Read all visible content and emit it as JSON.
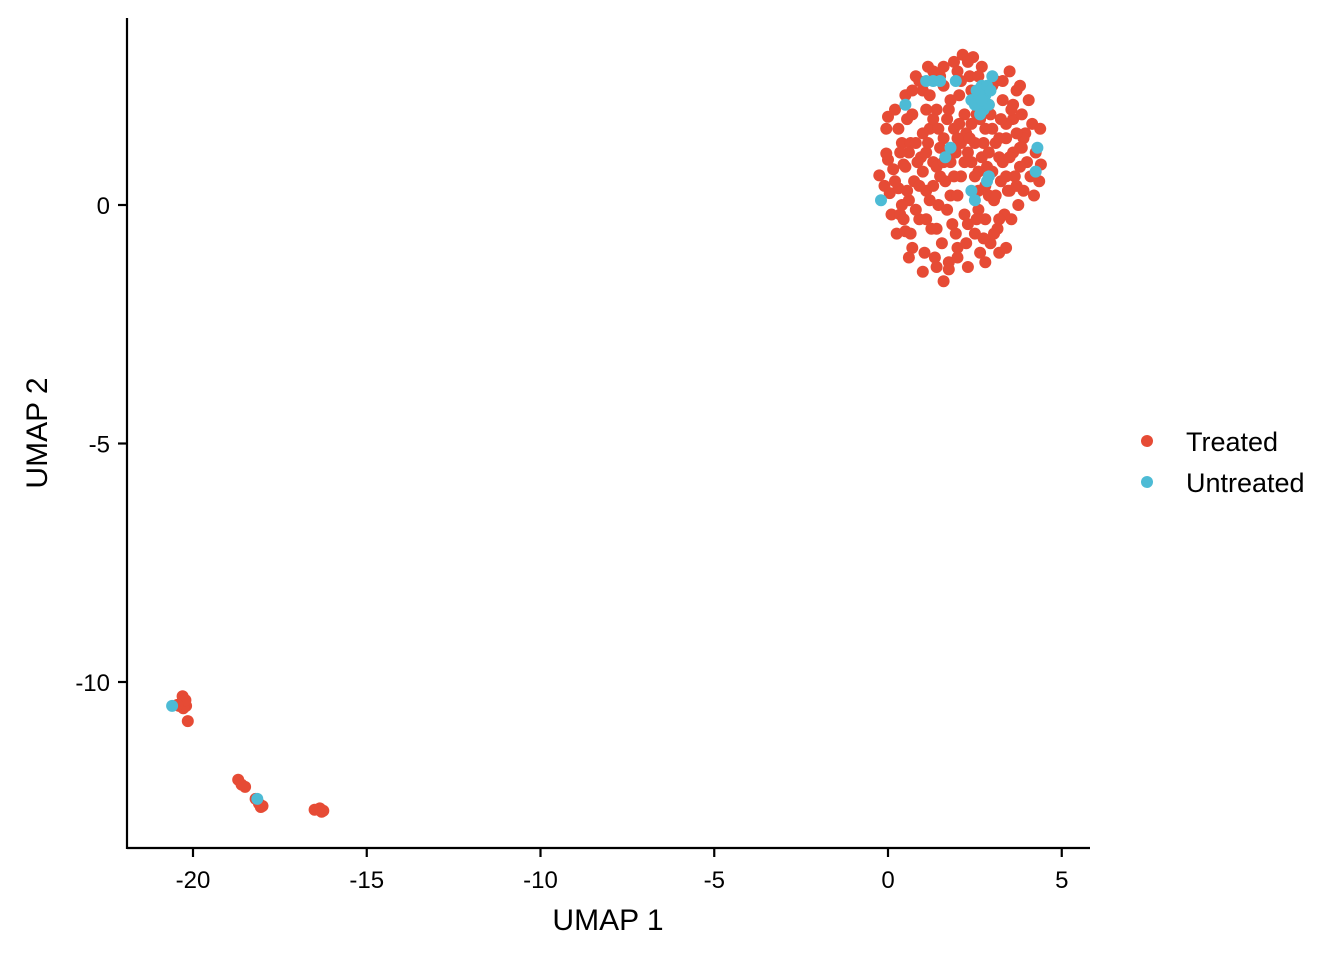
{
  "chart_data": {
    "type": "scatter",
    "title": "",
    "xlabel": "UMAP 1",
    "ylabel": "UMAP 2",
    "xlim": [
      -22,
      5.7
    ],
    "ylim": [
      -13.5,
      3.9
    ],
    "xticks": [
      -20,
      -15,
      -10,
      -5,
      0,
      5
    ],
    "yticks": [
      -10,
      -5,
      0
    ],
    "xtick_labels": [
      "-20",
      "-15",
      "-10",
      "-5",
      "0",
      "5"
    ],
    "ytick_labels": [
      "-10",
      "-5",
      "0"
    ],
    "grid": false,
    "legend_position": "right",
    "series": [
      {
        "name": "Treated",
        "color": "#E64B35",
        "points": [
          [
            -20.3,
            -10.3
          ],
          [
            -20.25,
            -10.42
          ],
          [
            -20.2,
            -10.5
          ],
          [
            -20.35,
            -10.45
          ],
          [
            -20.4,
            -10.5
          ],
          [
            -20.28,
            -10.55
          ],
          [
            -20.22,
            -10.38
          ],
          [
            -20.45,
            -10.48
          ],
          [
            -20.15,
            -10.82
          ],
          [
            -18.7,
            -12.05
          ],
          [
            -18.6,
            -12.15
          ],
          [
            -18.5,
            -12.2
          ],
          [
            -18.2,
            -12.45
          ],
          [
            -18.1,
            -12.55
          ],
          [
            -18.05,
            -12.62
          ],
          [
            -18.0,
            -12.6
          ],
          [
            -16.5,
            -12.68
          ],
          [
            -16.35,
            -12.65
          ],
          [
            -16.3,
            -12.72
          ],
          [
            -16.25,
            -12.7
          ],
          [
            -0.25,
            0.62
          ],
          [
            -0.05,
            1.6
          ],
          [
            0.0,
            0.95
          ],
          [
            -0.1,
            0.4
          ],
          [
            -0.05,
            1.08
          ],
          [
            0.05,
            0.25
          ],
          [
            0.1,
            -0.2
          ],
          [
            0.15,
            0.75
          ],
          [
            0.0,
            1.85
          ],
          [
            0.25,
            -0.6
          ],
          [
            0.3,
            0.35
          ],
          [
            0.4,
            1.3
          ],
          [
            0.2,
            2.0
          ],
          [
            0.35,
            -0.2
          ],
          [
            0.45,
            0.85
          ],
          [
            0.5,
            -0.55
          ],
          [
            0.55,
            1.8
          ],
          [
            0.6,
            0.1
          ],
          [
            0.7,
            -0.9
          ],
          [
            0.8,
            2.7
          ],
          [
            0.75,
            0.5
          ],
          [
            0.65,
            1.3
          ],
          [
            0.9,
            -0.3
          ],
          [
            0.95,
            1.0
          ],
          [
            1.0,
            2.4
          ],
          [
            1.05,
            -1.0
          ],
          [
            1.1,
            0.3
          ],
          [
            1.15,
            2.9
          ],
          [
            1.2,
            1.6
          ],
          [
            1.25,
            -0.5
          ],
          [
            1.3,
            0.9
          ],
          [
            1.35,
            -1.1
          ],
          [
            1.4,
            2.0
          ],
          [
            1.45,
            0.0
          ],
          [
            1.5,
            1.2
          ],
          [
            1.55,
            -0.8
          ],
          [
            1.6,
            2.5
          ],
          [
            1.65,
            0.5
          ],
          [
            1.7,
            1.8
          ],
          [
            1.75,
            -1.2
          ],
          [
            1.8,
            0.2
          ],
          [
            1.85,
            -0.4
          ],
          [
            1.9,
            3.0
          ],
          [
            1.95,
            1.1
          ],
          [
            2.0,
            -0.9
          ],
          [
            2.05,
            2.3
          ],
          [
            2.1,
            0.6
          ],
          [
            2.15,
            3.15
          ],
          [
            2.2,
            -0.2
          ],
          [
            2.25,
            1.5
          ],
          [
            2.3,
            -1.3
          ],
          [
            2.35,
            2.7
          ],
          [
            2.4,
            0.9
          ],
          [
            2.45,
            3.1
          ],
          [
            2.5,
            -0.6
          ],
          [
            2.55,
            1.9
          ],
          [
            2.6,
            0.3
          ],
          [
            2.65,
            -1.0
          ],
          [
            2.7,
            2.9
          ],
          [
            2.75,
            1.3
          ],
          [
            2.8,
            -0.3
          ],
          [
            2.85,
            0.8
          ],
          [
            2.9,
            2.1
          ],
          [
            2.95,
            -0.8
          ],
          [
            3.0,
            1.6
          ],
          [
            3.05,
            0.1
          ],
          [
            3.1,
            2.6
          ],
          [
            3.15,
            -0.5
          ],
          [
            3.2,
            1.0
          ],
          [
            3.25,
            0.5
          ],
          [
            3.3,
            2.2
          ],
          [
            3.35,
            -0.2
          ],
          [
            3.4,
            1.4
          ],
          [
            3.45,
            0.3
          ],
          [
            3.5,
            2.8
          ],
          [
            3.55,
            -0.3
          ],
          [
            3.6,
            1.8
          ],
          [
            3.65,
            0.6
          ],
          [
            3.7,
            2.4
          ],
          [
            3.75,
            0.0
          ],
          [
            3.8,
            1.2
          ],
          [
            3.85,
            1.9
          ],
          [
            3.9,
            0.3
          ],
          [
            3.95,
            1.5
          ],
          [
            4.0,
            0.9
          ],
          [
            4.05,
            2.2
          ],
          [
            4.1,
            0.6
          ],
          [
            4.15,
            1.7
          ],
          [
            4.2,
            0.2
          ],
          [
            4.25,
            1.1
          ],
          [
            4.38,
            1.6
          ],
          [
            4.4,
            0.85
          ],
          [
            4.35,
            0.5
          ],
          [
            1.6,
            -1.6
          ],
          [
            1.4,
            -1.3
          ],
          [
            2.0,
            -1.1
          ],
          [
            2.8,
            -1.2
          ],
          [
            3.2,
            -1.0
          ],
          [
            0.6,
            -1.1
          ],
          [
            1.0,
            -1.4
          ],
          [
            1.75,
            -1.35
          ],
          [
            3.4,
            -0.9
          ],
          [
            0.5,
            0.8
          ],
          [
            0.9,
            0.4
          ],
          [
            1.2,
            0.1
          ],
          [
            1.5,
            0.6
          ],
          [
            1.8,
            0.9
          ],
          [
            2.1,
            1.3
          ],
          [
            2.4,
            1.7
          ],
          [
            2.7,
            1.0
          ],
          [
            3.0,
            0.7
          ],
          [
            3.3,
            0.9
          ],
          [
            3.6,
            1.1
          ],
          [
            3.9,
            1.4
          ],
          [
            0.7,
            1.9
          ],
          [
            1.0,
            1.5
          ],
          [
            1.3,
            1.8
          ],
          [
            1.6,
            1.4
          ],
          [
            1.9,
            1.6
          ],
          [
            2.2,
            1.9
          ],
          [
            2.5,
            1.3
          ],
          [
            2.8,
            1.6
          ],
          [
            3.1,
            1.3
          ],
          [
            3.4,
            1.7
          ],
          [
            3.7,
            1.5
          ],
          [
            0.6,
            1.1
          ],
          [
            0.8,
            1.3
          ],
          [
            1.1,
            1.1
          ],
          [
            1.4,
            0.8
          ],
          [
            1.7,
            1.1
          ],
          [
            2.0,
            1.4
          ],
          [
            2.3,
            1.1
          ],
          [
            2.6,
            0.7
          ],
          [
            2.9,
            1.1
          ],
          [
            3.2,
            1.4
          ],
          [
            3.5,
            1.0
          ],
          [
            3.8,
            0.8
          ],
          [
            0.4,
            0.0
          ],
          [
            0.8,
            -0.1
          ],
          [
            1.1,
            -0.3
          ],
          [
            1.4,
            -0.5
          ],
          [
            1.7,
            -0.1
          ],
          [
            2.0,
            0.2
          ],
          [
            2.3,
            -0.4
          ],
          [
            2.6,
            -0.1
          ],
          [
            2.9,
            0.2
          ],
          [
            3.2,
            -0.3
          ],
          [
            3.5,
            0.3
          ],
          [
            0.9,
            2.6
          ],
          [
            1.2,
            2.3
          ],
          [
            1.5,
            2.7
          ],
          [
            1.8,
            2.2
          ],
          [
            2.1,
            2.6
          ],
          [
            2.4,
            2.4
          ],
          [
            2.7,
            2.2
          ],
          [
            3.0,
            2.5
          ],
          [
            3.3,
            2.6
          ],
          [
            3.6,
            2.1
          ],
          [
            3.8,
            2.5
          ],
          [
            0.3,
            1.6
          ],
          [
            0.5,
            2.3
          ],
          [
            1.0,
            0.7
          ],
          [
            1.3,
            0.4
          ],
          [
            1.6,
            0.9
          ],
          [
            1.9,
            0.6
          ],
          [
            2.2,
            0.9
          ],
          [
            2.5,
            0.6
          ],
          [
            2.8,
            0.4
          ],
          [
            3.1,
            0.2
          ],
          [
            3.4,
            0.6
          ],
          [
            3.7,
            0.4
          ],
          [
            0.2,
            0.5
          ],
          [
            0.35,
            1.1
          ],
          [
            0.55,
            0.3
          ],
          [
            0.85,
            0.9
          ],
          [
            1.15,
            1.3
          ],
          [
            1.45,
            1.6
          ],
          [
            1.75,
            2.0
          ],
          [
            2.05,
            1.7
          ],
          [
            2.35,
            1.4
          ],
          [
            2.65,
            1.8
          ],
          [
            2.95,
            1.9
          ],
          [
            3.25,
            1.8
          ],
          [
            3.55,
            2.0
          ],
          [
            3.85,
            1.2
          ],
          [
            1.6,
            2.9
          ],
          [
            2.0,
            2.8
          ],
          [
            2.3,
            3.0
          ],
          [
            2.6,
            2.7
          ],
          [
            1.3,
            2.8
          ],
          [
            1.1,
            2.0
          ],
          [
            0.7,
            2.4
          ],
          [
            0.45,
            -0.3
          ],
          [
            0.65,
            -0.6
          ],
          [
            1.95,
            -0.6
          ],
          [
            2.25,
            -0.8
          ],
          [
            2.55,
            -0.3
          ],
          [
            2.75,
            -0.7
          ],
          [
            3.05,
            -0.6
          ]
        ]
      },
      {
        "name": "Untreated",
        "color": "#4DBBD5",
        "points": [
          [
            -20.6,
            -10.5
          ],
          [
            -18.15,
            -12.45
          ],
          [
            -0.2,
            0.1
          ],
          [
            0.5,
            2.1
          ],
          [
            1.1,
            2.6
          ],
          [
            1.3,
            2.6
          ],
          [
            1.5,
            2.6
          ],
          [
            1.65,
            1.0
          ],
          [
            1.8,
            1.2
          ],
          [
            1.95,
            2.6
          ],
          [
            2.4,
            2.2
          ],
          [
            2.55,
            2.4
          ],
          [
            2.6,
            2.2
          ],
          [
            2.7,
            2.5
          ],
          [
            2.75,
            2.0
          ],
          [
            2.8,
            2.3
          ],
          [
            2.85,
            2.5
          ],
          [
            2.9,
            2.1
          ],
          [
            2.95,
            2.4
          ],
          [
            2.65,
            1.9
          ],
          [
            2.5,
            2.1
          ],
          [
            2.7,
            2.2
          ],
          [
            3.0,
            2.7
          ],
          [
            2.4,
            0.3
          ],
          [
            2.5,
            0.1
          ],
          [
            2.85,
            0.5
          ],
          [
            2.9,
            0.6
          ],
          [
            4.3,
            1.2
          ],
          [
            4.25,
            0.7
          ]
        ]
      }
    ]
  }
}
